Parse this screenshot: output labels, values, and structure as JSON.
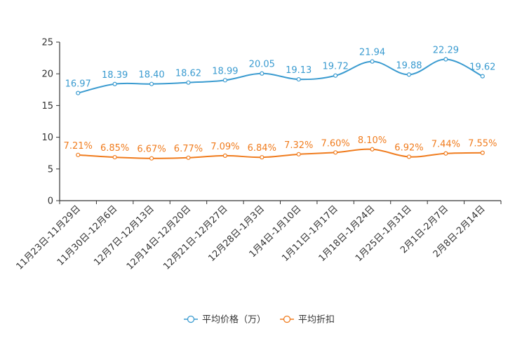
{
  "chart_data": {
    "type": "line",
    "title": "",
    "xlabel": "",
    "ylabel": "",
    "ylim": [
      0,
      25
    ],
    "yticks": [
      0,
      5,
      10,
      15,
      20,
      25
    ],
    "grid": false,
    "legend_position": "bottom-center",
    "categories": [
      "11月23日-11月29日",
      "11月30日-12月6日",
      "12月7日-12月13日",
      "12月14日-12月20日",
      "12月21日-12月27日",
      "12月28日-1月3日",
      "1月4日-1月10日",
      "1月11日-1月17日",
      "1月18日-1月24日",
      "1月25日-1月31日",
      "2月1日-2月7日",
      "2月8日-2月14日"
    ],
    "series": [
      {
        "name": "平均价格（万）",
        "color": "#3a9bd0",
        "values": [
          16.97,
          18.39,
          18.4,
          18.62,
          18.99,
          20.05,
          19.13,
          19.72,
          21.94,
          19.88,
          22.29,
          19.62
        ],
        "labels": [
          "16.97",
          "18.39",
          "18.40",
          "18.62",
          "18.99",
          "20.05",
          "19.13",
          "19.72",
          "21.94",
          "19.88",
          "22.29",
          "19.62"
        ]
      },
      {
        "name": "平均折扣",
        "color": "#f07c1e",
        "values": [
          7.21,
          6.85,
          6.67,
          6.77,
          7.09,
          6.84,
          7.32,
          7.6,
          8.1,
          6.92,
          7.44,
          7.55
        ],
        "labels": [
          "7.21%",
          "6.85%",
          "6.67%",
          "6.77%",
          "7.09%",
          "6.84%",
          "7.32%",
          "7.60%",
          "8.10%",
          "6.92%",
          "7.44%",
          "7.55%"
        ]
      }
    ]
  }
}
